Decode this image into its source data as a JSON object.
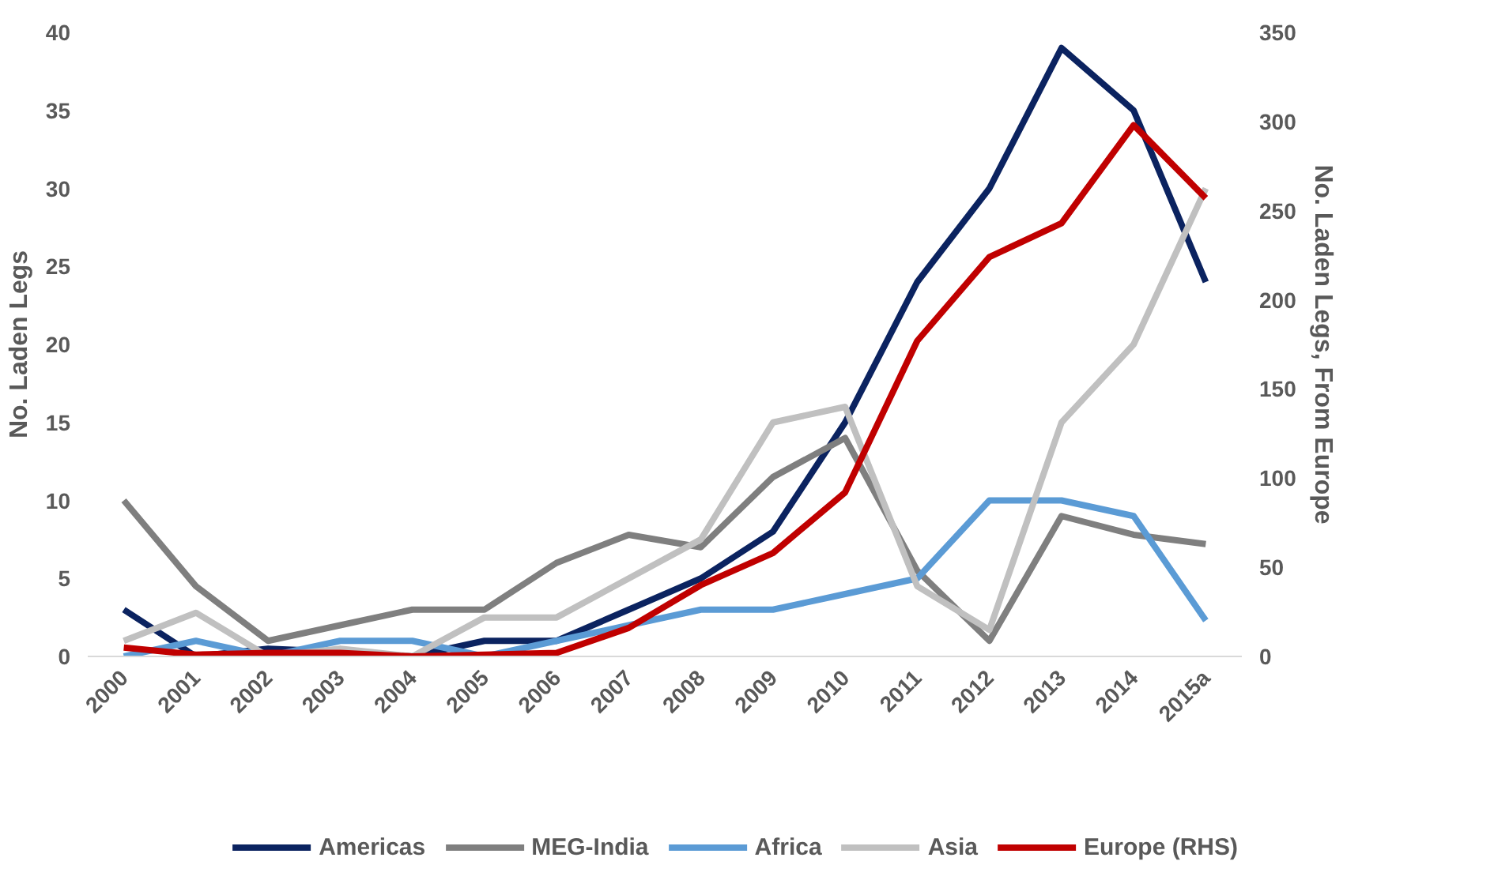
{
  "chart_data": {
    "type": "line",
    "ylabel": "No. Laden Legs",
    "y2label": "No. Laden Legs, From Europe",
    "categories": [
      "2000",
      "2001",
      "2002",
      "2003",
      "2004",
      "2005",
      "2006",
      "2007",
      "2008",
      "2009",
      "2010",
      "2011",
      "2012",
      "2013",
      "2014",
      "2015a"
    ],
    "ylim": [
      0,
      40
    ],
    "yticks": [
      0,
      5,
      10,
      15,
      20,
      25,
      30,
      35,
      40
    ],
    "y2lim": [
      0,
      350
    ],
    "y2ticks": [
      0,
      50,
      100,
      150,
      200,
      250,
      300,
      350
    ],
    "series": [
      {
        "name": "Americas",
        "color": "#0b2360",
        "values": [
          3,
          0,
          0.5,
          0.3,
          0,
          1,
          1,
          3,
          5,
          8,
          15,
          24,
          30,
          39,
          35,
          24
        ]
      },
      {
        "name": "MEG-India",
        "color": "#7f7f7f",
        "values": [
          10,
          4.5,
          1,
          2,
          3,
          3,
          6,
          7.8,
          7,
          11.5,
          14,
          5.5,
          1,
          9,
          7.8,
          7.2
        ]
      },
      {
        "name": "Africa",
        "color": "#5b9bd5",
        "values": [
          0,
          1,
          0,
          1,
          1,
          0,
          1,
          2,
          3,
          3,
          4,
          5,
          10,
          10,
          9,
          2.3
        ]
      },
      {
        "name": "Asia",
        "color": "#c0c0c0",
        "values": [
          1,
          2.8,
          0,
          0.5,
          0,
          2.5,
          2.5,
          5,
          7.5,
          15,
          16,
          4.5,
          1.7,
          15,
          20,
          30
        ]
      },
      {
        "name": "Europe (RHS)",
        "color": "#c00000",
        "axis": "y2",
        "values": [
          5,
          1,
          2,
          2,
          0,
          1,
          2,
          16,
          40,
          58,
          92,
          177,
          224,
          243,
          298,
          257
        ]
      }
    ],
    "grid": false,
    "legend": "bottom",
    "line_style": "solid",
    "marker": "none"
  }
}
